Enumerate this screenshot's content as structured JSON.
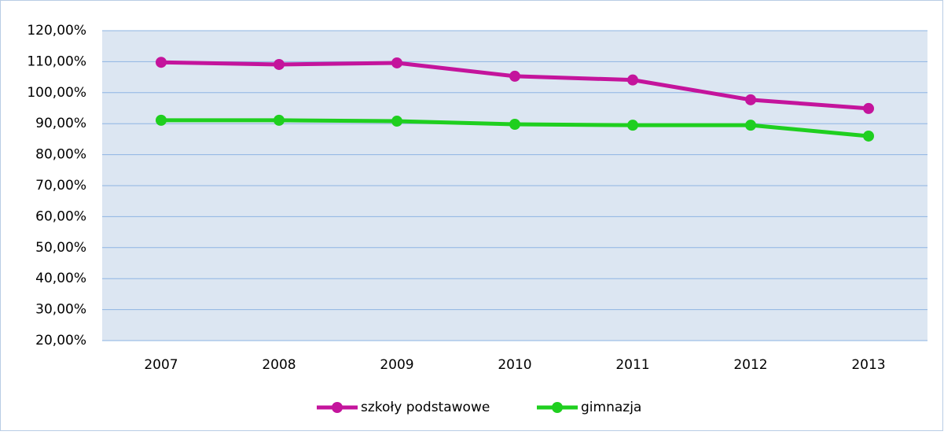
{
  "chart_data": {
    "type": "line",
    "categories": [
      "2007",
      "2008",
      "2009",
      "2010",
      "2011",
      "2012",
      "2013"
    ],
    "series": [
      {
        "name": "szkoły podstawowe",
        "color": "#c4149c",
        "values": [
          109.8,
          109.1,
          109.6,
          105.3,
          104.1,
          97.7,
          94.9
        ]
      },
      {
        "name": "gimnazja",
        "color": "#1fcf1f",
        "values": [
          91.1,
          91.1,
          90.8,
          89.8,
          89.5,
          89.5,
          86.0
        ]
      }
    ],
    "ylim": [
      20,
      120
    ],
    "yticks": [
      {
        "value": 20,
        "label": "20,00%"
      },
      {
        "value": 30,
        "label": "30,00%"
      },
      {
        "value": 40,
        "label": "40,00%"
      },
      {
        "value": 50,
        "label": "50,00%"
      },
      {
        "value": 60,
        "label": "60,00%"
      },
      {
        "value": 70,
        "label": "70,00%"
      },
      {
        "value": 80,
        "label": "80,00%"
      },
      {
        "value": 90,
        "label": "90,00%"
      },
      {
        "value": 100,
        "label": "100,00%"
      },
      {
        "value": 110,
        "label": "110,00%"
      },
      {
        "value": 120,
        "label": "120,00%"
      }
    ],
    "grid": true,
    "legend": "bottom"
  }
}
